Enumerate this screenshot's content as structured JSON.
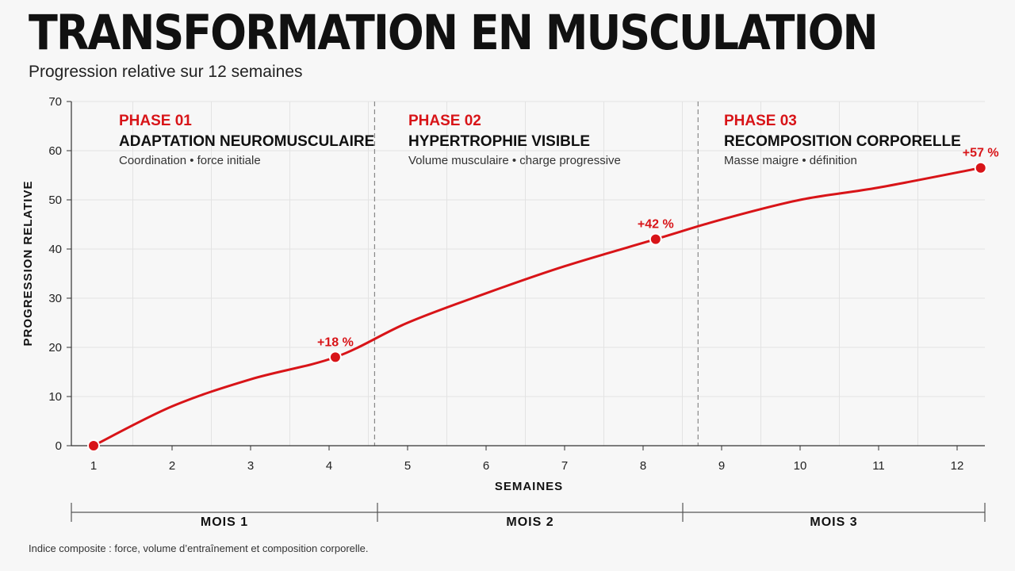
{
  "title": "TRANSFORMATION EN MUSCULATION",
  "subtitle": "Progression relative sur 12 semaines",
  "footnote": "Indice composite : force, volume d’entraînement et composition corporelle.",
  "colors": {
    "accent": "#d81418",
    "text": "#111111",
    "grid": "#e3e3e3"
  },
  "chart_data": {
    "type": "line",
    "xlabel": "SEMAINES",
    "ylabel": "PROGRESSION RELATIVE",
    "xlim": [
      1,
      12
    ],
    "ylim": [
      0,
      70
    ],
    "x_ticks": [
      1,
      2,
      3,
      4,
      5,
      6,
      7,
      8,
      9,
      10,
      11,
      12
    ],
    "y_ticks": [
      0,
      10,
      20,
      30,
      40,
      50,
      60,
      70
    ],
    "grid": true,
    "series": [
      {
        "color": "#d81418",
        "x": [
          1,
          2,
          3,
          4.08,
          5,
          6,
          7,
          8.16,
          9,
          10,
          11,
          12.3
        ],
        "y": [
          0,
          8,
          13.5,
          18,
          25,
          31,
          36.5,
          42,
          46,
          50,
          52.5,
          56.5
        ]
      }
    ],
    "highlighted_points": [
      {
        "x": 1,
        "y": 0,
        "label": ""
      },
      {
        "x": 4.08,
        "y": 18,
        "label": "+18 %"
      },
      {
        "x": 8.16,
        "y": 42,
        "label": "+42 %"
      },
      {
        "x": 12.3,
        "y": 56.5,
        "label": "+57 %"
      }
    ],
    "phase_dividers": [
      4.58,
      8.7
    ],
    "phases": [
      {
        "number": "PHASE 01",
        "name": "ADAPTATION NEUROMUSCULAIRE",
        "description": "Coordination • force initiale",
        "x_start": 1
      },
      {
        "number": "PHASE 02",
        "name": "HYPERTROPHIE VISIBLE",
        "description": "Volume musculaire • charge progressive",
        "x_start": 4.58
      },
      {
        "number": "PHASE 03",
        "name": "RECOMPOSITION CORPORELLE",
        "description": "Masse maigre • définition",
        "x_start": 8.7
      }
    ],
    "months": [
      {
        "label": "MOIS 1"
      },
      {
        "label": "MOIS 2"
      },
      {
        "label": "MOIS 3"
      }
    ]
  }
}
